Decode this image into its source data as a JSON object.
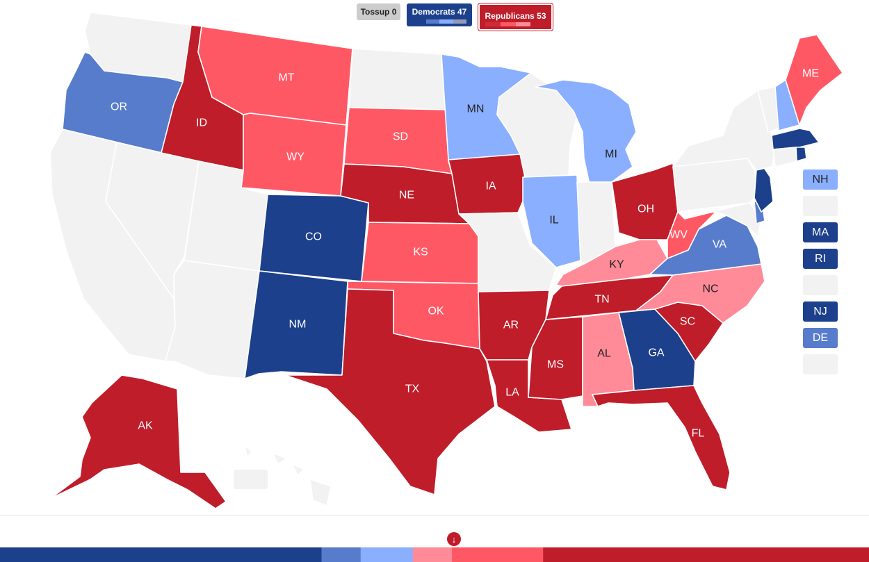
{
  "legend": {
    "tossup_label": "Tossup 0",
    "dem_label": "Democrats 47",
    "rep_label": "Republicans 53"
  },
  "colors": {
    "tossup": "#f2f2f2",
    "dem_safe": "#1c408c",
    "dem_likely": "#577ccc",
    "dem_lean": "#8aafff",
    "rep_lean": "#ff8b98",
    "rep_likely": "#ff5865",
    "rep_safe": "#bf1d29"
  },
  "states": [
    {
      "abbr": "WA",
      "label": "",
      "rating": "tossup"
    },
    {
      "abbr": "OR",
      "label": "OR",
      "rating": "dem_likely"
    },
    {
      "abbr": "CA",
      "label": "",
      "rating": "tossup"
    },
    {
      "abbr": "NV",
      "label": "",
      "rating": "tossup"
    },
    {
      "abbr": "ID",
      "label": "ID",
      "rating": "rep_safe"
    },
    {
      "abbr": "MT",
      "label": "MT",
      "rating": "rep_likely"
    },
    {
      "abbr": "WY",
      "label": "WY",
      "rating": "rep_likely"
    },
    {
      "abbr": "UT",
      "label": "",
      "rating": "tossup"
    },
    {
      "abbr": "AZ",
      "label": "",
      "rating": "tossup"
    },
    {
      "abbr": "CO",
      "label": "CO",
      "rating": "dem_safe"
    },
    {
      "abbr": "NM",
      "label": "NM",
      "rating": "dem_safe"
    },
    {
      "abbr": "ND",
      "label": "",
      "rating": "tossup"
    },
    {
      "abbr": "SD",
      "label": "SD",
      "rating": "rep_likely"
    },
    {
      "abbr": "NE",
      "label": "NE",
      "rating": "rep_safe"
    },
    {
      "abbr": "KS",
      "label": "KS",
      "rating": "rep_likely"
    },
    {
      "abbr": "OK",
      "label": "OK",
      "rating": "rep_likely"
    },
    {
      "abbr": "TX",
      "label": "TX",
      "rating": "rep_safe"
    },
    {
      "abbr": "MN",
      "label": "MN",
      "rating": "dem_lean"
    },
    {
      "abbr": "IA",
      "label": "IA",
      "rating": "rep_safe"
    },
    {
      "abbr": "MO",
      "label": "",
      "rating": "tossup"
    },
    {
      "abbr": "AR",
      "label": "AR",
      "rating": "rep_safe"
    },
    {
      "abbr": "LA",
      "label": "LA",
      "rating": "rep_safe"
    },
    {
      "abbr": "WI",
      "label": "",
      "rating": "tossup"
    },
    {
      "abbr": "IL",
      "label": "IL",
      "rating": "dem_lean"
    },
    {
      "abbr": "MI",
      "label": "MI",
      "rating": "dem_lean"
    },
    {
      "abbr": "IN",
      "label": "",
      "rating": "tossup"
    },
    {
      "abbr": "OH",
      "label": "OH",
      "rating": "rep_safe"
    },
    {
      "abbr": "KY",
      "label": "KY",
      "rating": "rep_lean"
    },
    {
      "abbr": "TN",
      "label": "TN",
      "rating": "rep_safe"
    },
    {
      "abbr": "MS",
      "label": "MS",
      "rating": "rep_safe"
    },
    {
      "abbr": "AL",
      "label": "AL",
      "rating": "rep_lean"
    },
    {
      "abbr": "GA",
      "label": "GA",
      "rating": "dem_safe"
    },
    {
      "abbr": "FL",
      "label": "FL",
      "rating": "rep_safe"
    },
    {
      "abbr": "SC",
      "label": "SC",
      "rating": "rep_safe"
    },
    {
      "abbr": "NC",
      "label": "NC",
      "rating": "rep_lean"
    },
    {
      "abbr": "VA",
      "label": "VA",
      "rating": "dem_likely"
    },
    {
      "abbr": "WV",
      "label": "WV",
      "rating": "rep_likely"
    },
    {
      "abbr": "PA",
      "label": "",
      "rating": "tossup"
    },
    {
      "abbr": "NY",
      "label": "",
      "rating": "tossup"
    },
    {
      "abbr": "VT",
      "label": "",
      "rating": "tossup"
    },
    {
      "abbr": "NH",
      "label": "",
      "rating": "dem_lean"
    },
    {
      "abbr": "ME",
      "label": "ME",
      "rating": "rep_likely"
    },
    {
      "abbr": "MA",
      "label": "",
      "rating": "dem_safe"
    },
    {
      "abbr": "CT",
      "label": "",
      "rating": "tossup"
    },
    {
      "abbr": "RI",
      "label": "",
      "rating": "dem_safe"
    },
    {
      "abbr": "NJ",
      "label": "",
      "rating": "dem_safe"
    },
    {
      "abbr": "DE",
      "label": "",
      "rating": "dem_likely"
    },
    {
      "abbr": "MD",
      "label": "",
      "rating": "tossup"
    },
    {
      "abbr": "AK",
      "label": "AK",
      "rating": "rep_safe"
    },
    {
      "abbr": "HI",
      "label": "",
      "rating": "tossup"
    }
  ],
  "small_states": [
    {
      "abbr": "NH",
      "label": "NH",
      "rating": "dem_lean"
    },
    {
      "abbr": "VT",
      "label": "",
      "rating": "tossup"
    },
    {
      "abbr": "MA",
      "label": "MA",
      "rating": "dem_safe"
    },
    {
      "abbr": "RI",
      "label": "RI",
      "rating": "dem_safe"
    },
    {
      "abbr": "CT",
      "label": "",
      "rating": "tossup"
    },
    {
      "abbr": "NJ",
      "label": "NJ",
      "rating": "dem_safe"
    },
    {
      "abbr": "DE",
      "label": "DE",
      "rating": "dem_likely"
    },
    {
      "abbr": "MD",
      "label": "",
      "rating": "tossup"
    }
  ],
  "seat_bar": [
    {
      "rating": "dem_safe",
      "seats": 37
    },
    {
      "rating": "dem_likely",
      "seats": 4.5
    },
    {
      "rating": "dem_lean",
      "seats": 6
    },
    {
      "rating": "rep_lean",
      "seats": 4.5
    },
    {
      "rating": "rep_likely",
      "seats": 10.5
    },
    {
      "rating": "rep_safe",
      "seats": 37.5
    }
  ]
}
